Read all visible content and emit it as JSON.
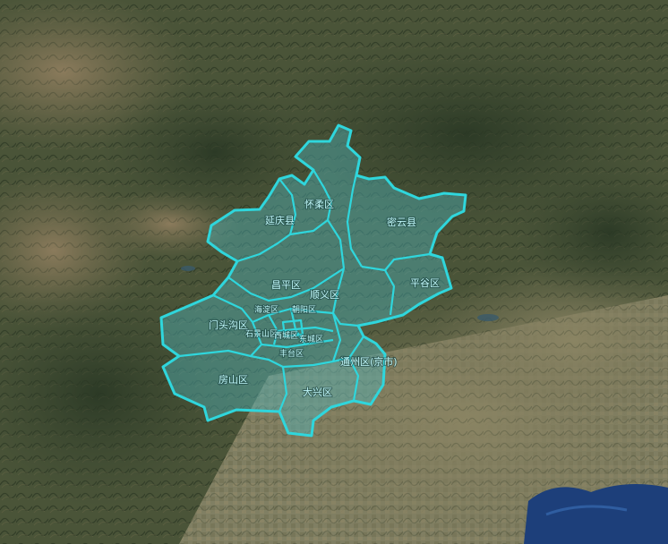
{
  "map": {
    "region": "Beijing",
    "basemap": "satellite imagery",
    "colors": {
      "boundary_stroke": "#2fd6dc",
      "region_fill": "#4fb7bf",
      "label_text": "#bff6f8",
      "sea": "#1d3f7a"
    },
    "districts": [
      {
        "id": "huairou",
        "label": "怀柔区"
      },
      {
        "id": "yanqing",
        "label": "延庆县"
      },
      {
        "id": "miyun",
        "label": "密云县"
      },
      {
        "id": "changping",
        "label": "昌平区"
      },
      {
        "id": "shunyi",
        "label": "顺义区"
      },
      {
        "id": "pinggu",
        "label": "平谷区"
      },
      {
        "id": "mentougou",
        "label": "门头沟区"
      },
      {
        "id": "haidian",
        "label": "海淀区"
      },
      {
        "id": "chaoyang",
        "label": "朝阳区"
      },
      {
        "id": "shijingshan",
        "label": "石景山区"
      },
      {
        "id": "xicheng",
        "label": "西城区"
      },
      {
        "id": "dongcheng",
        "label": "东城区"
      },
      {
        "id": "fengtai",
        "label": "丰台区"
      },
      {
        "id": "fangshan",
        "label": "房山区"
      },
      {
        "id": "daxing",
        "label": "大兴区"
      },
      {
        "id": "tongzhou",
        "label": "通州区(京市)"
      }
    ]
  }
}
